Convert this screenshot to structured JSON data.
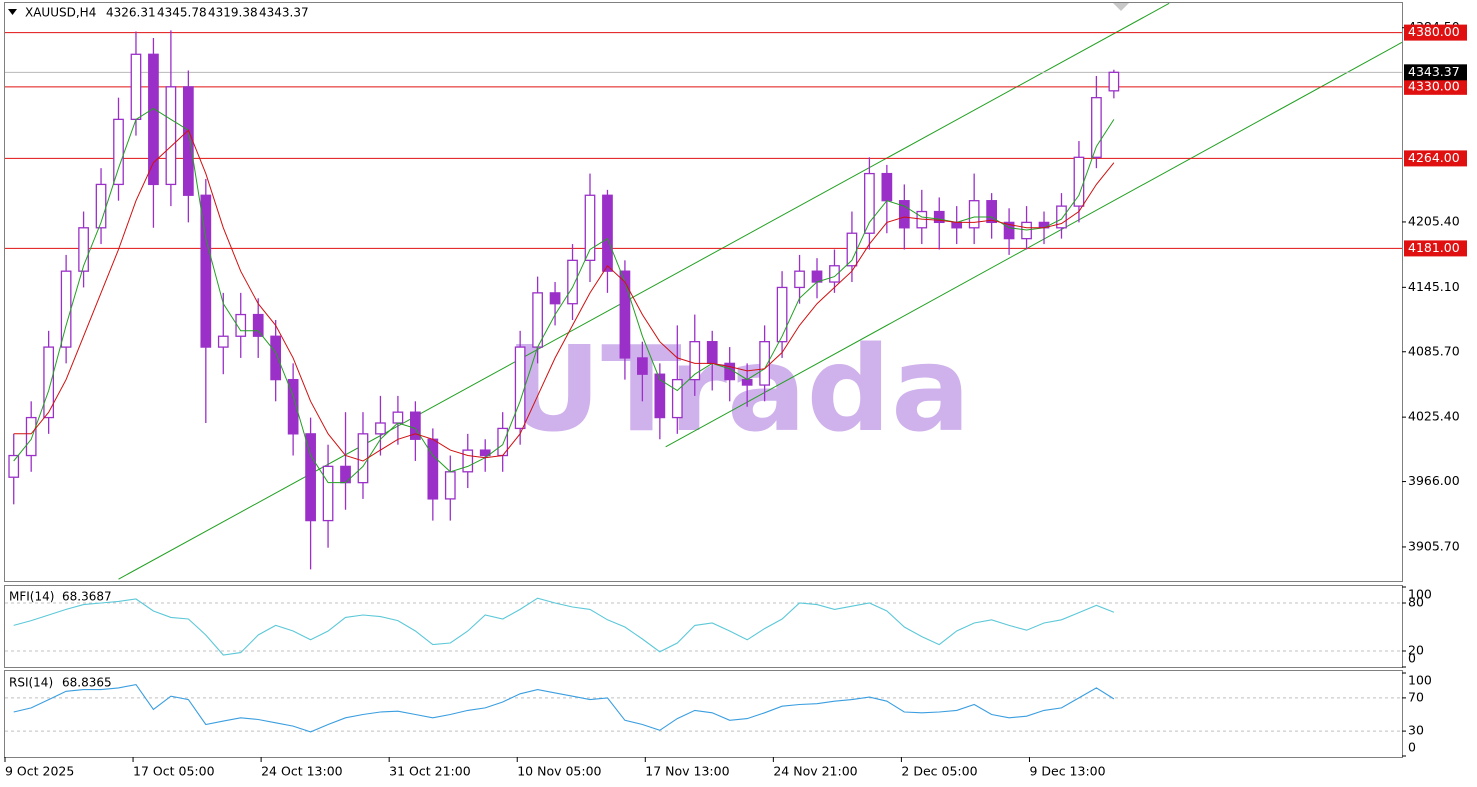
{
  "chart_data": [
    {
      "type": "candlestick",
      "title": "XAUUSD,H4",
      "quote": [
        4326.31,
        4345.78,
        4319.38,
        4343.37
      ],
      "watermark": "UTrada",
      "xlim": [
        0,
        480
      ],
      "ylim": [
        3874.3,
        4407.3
      ],
      "xticks": [
        {
          "value": 0,
          "label": "9 Oct 2025"
        },
        {
          "value": 44,
          "label": "17 Oct 05:00"
        },
        {
          "value": 88,
          "label": "24 Oct 13:00"
        },
        {
          "value": 132,
          "label": "31 Oct 21:00"
        },
        {
          "value": 176,
          "label": "10 Nov 05:00"
        },
        {
          "value": 220,
          "label": "17 Nov 13:00"
        },
        {
          "value": 264,
          "label": "24 Nov 21:00"
        },
        {
          "value": 308,
          "label": "2 Dec 05:00"
        },
        {
          "value": 352,
          "label": "9 Dec 13:00"
        }
      ],
      "yticks": [
        {
          "value": 4384.5,
          "label": "4384.50"
        },
        {
          "value": 4205.4,
          "label": "4205.40"
        },
        {
          "value": 4145.1,
          "label": "4145.10"
        },
        {
          "value": 4085.7,
          "label": "4085.70"
        },
        {
          "value": 4025.4,
          "label": "4025.40"
        },
        {
          "value": 3966,
          "label": "3966.00"
        },
        {
          "value": 3905.7,
          "label": "3905.70"
        }
      ],
      "color": "#9b30c8",
      "x": [
        3,
        9,
        15,
        21,
        27,
        33,
        39,
        45,
        51,
        57,
        63,
        69,
        75,
        81,
        87,
        93,
        99,
        105,
        111,
        117,
        123,
        129,
        135,
        141,
        147,
        153,
        159,
        165,
        171,
        177,
        183,
        189,
        195,
        201,
        207,
        213,
        219,
        225,
        231,
        237,
        243,
        249,
        255,
        261,
        267,
        273,
        279,
        285,
        291,
        297,
        303,
        309,
        315,
        321,
        327,
        333,
        339,
        345,
        351,
        357,
        363,
        369,
        375,
        381
      ],
      "open": [
        3970,
        3990,
        4025,
        4090,
        4160,
        4200,
        4240,
        4300,
        4360,
        4240,
        4330,
        4230,
        4090,
        4100,
        4120,
        4100,
        4060,
        4010,
        3930,
        3980,
        3965,
        4010,
        4020,
        4030,
        4005,
        3950,
        3975,
        3995,
        3990,
        4015,
        4090,
        4140,
        4130,
        4170,
        4230,
        4160,
        4080,
        4065,
        4025,
        4060,
        4095,
        4075,
        4060,
        4055,
        4095,
        4145,
        4160,
        4150,
        4165,
        4195,
        4250,
        4225,
        4200,
        4215,
        4205,
        4200,
        4225,
        4205,
        4190,
        4205,
        4200,
        4220,
        4265,
        4326.31
      ],
      "high": [
        4010,
        4040,
        4105,
        4175,
        4215,
        4255,
        4320,
        4381,
        4375,
        4382,
        4345,
        4245,
        4140,
        4140,
        4135,
        4115,
        4075,
        4025,
        4000,
        4030,
        4030,
        4045,
        4045,
        4040,
        4015,
        3990,
        4010,
        4005,
        4030,
        4105,
        4155,
        4150,
        4185,
        4250,
        4235,
        4170,
        4095,
        4075,
        4110,
        4120,
        4105,
        4090,
        4075,
        4110,
        4160,
        4175,
        4172,
        4180,
        4215,
        4265,
        4258,
        4240,
        4235,
        4228,
        4220,
        4250,
        4232,
        4218,
        4220,
        4215,
        4232,
        4280,
        4340,
        4345.78
      ],
      "low": [
        3945,
        3975,
        4010,
        4075,
        4145,
        4185,
        4225,
        4285,
        4200,
        4220,
        4205,
        4020,
        4065,
        4080,
        4080,
        4040,
        3990,
        3885,
        3905,
        3940,
        3950,
        3990,
        4000,
        3985,
        3930,
        3930,
        3960,
        3975,
        3975,
        4000,
        4075,
        4110,
        4115,
        4150,
        4140,
        4060,
        4040,
        4005,
        4010,
        4045,
        4050,
        4040,
        4035,
        4040,
        4080,
        4130,
        4135,
        4140,
        4150,
        4180,
        4195,
        4180,
        4185,
        4180,
        4185,
        4185,
        4190,
        4175,
        4180,
        4185,
        4190,
        4205,
        4255,
        4319.38
      ],
      "close": [
        3990,
        4025,
        4090,
        4160,
        4200,
        4240,
        4300,
        4360,
        4240,
        4330,
        4230,
        4090,
        4100,
        4120,
        4100,
        4060,
        4010,
        3930,
        3980,
        3965,
        4010,
        4020,
        4030,
        4005,
        3950,
        3975,
        3995,
        3990,
        4015,
        4090,
        4140,
        4130,
        4170,
        4230,
        4160,
        4080,
        4065,
        4025,
        4060,
        4095,
        4075,
        4060,
        4055,
        4095,
        4145,
        4160,
        4150,
        4165,
        4195,
        4250,
        4225,
        4200,
        4215,
        4205,
        4200,
        4225,
        4205,
        4190,
        4205,
        4200,
        4220,
        4265,
        4320,
        4343.37
      ],
      "series": [
        {
          "color": "#22a022",
          "values": [
            3985,
            4005,
            4050,
            4110,
            4165,
            4205,
            4255,
            4300,
            4310,
            4300,
            4290,
            4190,
            4130,
            4105,
            4105,
            4085,
            4045,
            3990,
            3965,
            3965,
            3980,
            4005,
            4020,
            4015,
            3990,
            3975,
            3980,
            3988,
            4000,
            4040,
            4090,
            4120,
            4145,
            4180,
            4190,
            4150,
            4100,
            4060,
            4050,
            4065,
            4075,
            4070,
            4060,
            4070,
            4100,
            4135,
            4150,
            4155,
            4170,
            4205,
            4225,
            4220,
            4210,
            4208,
            4205,
            4210,
            4210,
            4200,
            4198,
            4200,
            4208,
            4230,
            4275,
            4300
          ]
        },
        {
          "color": "#d01010",
          "values": [
            4010,
            4010,
            4030,
            4060,
            4100,
            4140,
            4180,
            4225,
            4260,
            4275,
            4290,
            4250,
            4200,
            4160,
            4130,
            4110,
            4080,
            4040,
            4010,
            3990,
            3985,
            3995,
            4005,
            4010,
            4005,
            3995,
            3990,
            3988,
            3990,
            4010,
            4045,
            4080,
            4110,
            4140,
            4165,
            4150,
            4120,
            4095,
            4080,
            4075,
            4075,
            4072,
            4068,
            4070,
            4085,
            4110,
            4130,
            4145,
            4160,
            4185,
            4205,
            4210,
            4208,
            4207,
            4205,
            4205,
            4207,
            4203,
            4200,
            4200,
            4204,
            4215,
            4240,
            4260
          ]
        }
      ],
      "trendlines": [
        {
          "x": [
            39,
            400
          ],
          "y": [
            3876,
            4407
          ],
          "color": "#22a022"
        },
        {
          "x": [
            227,
            480
          ],
          "y": [
            3998,
            4371
          ],
          "color": "#22a022"
        }
      ],
      "levels": [
        {
          "value": 4380,
          "label": "4380.00"
        },
        {
          "value": 4330,
          "label": "4330.00"
        },
        {
          "value": 4264,
          "label": "4264.00"
        },
        {
          "value": 4181,
          "label": "4181.00"
        }
      ],
      "level_color": "#e01010",
      "current_price": 4343.37
    },
    {
      "type": "line",
      "title": "MFI(14)",
      "value": 68.3687,
      "xlim": [
        0,
        480
      ],
      "ylim": [
        0,
        100
      ],
      "yticks": [
        100,
        80,
        20,
        0
      ],
      "levels": [
        80,
        20
      ],
      "color": "#5cc8d8",
      "x": [
        3,
        9,
        15,
        21,
        27,
        33,
        39,
        45,
        51,
        57,
        63,
        69,
        75,
        81,
        87,
        93,
        99,
        105,
        111,
        117,
        123,
        129,
        135,
        141,
        147,
        153,
        159,
        165,
        171,
        177,
        183,
        189,
        195,
        201,
        207,
        213,
        219,
        225,
        231,
        237,
        243,
        249,
        255,
        261,
        267,
        273,
        279,
        285,
        291,
        297,
        303,
        309,
        315,
        321,
        327,
        333,
        339,
        345,
        351,
        357,
        363,
        369,
        375,
        381
      ],
      "values": [
        52,
        58,
        65,
        72,
        78,
        80,
        82,
        85,
        70,
        62,
        60,
        40,
        15,
        18,
        40,
        52,
        45,
        34,
        45,
        62,
        65,
        63,
        58,
        45,
        28,
        30,
        45,
        65,
        60,
        72,
        86,
        80,
        75,
        72,
        59,
        50,
        35,
        19,
        30,
        52,
        55,
        45,
        34,
        48,
        60,
        80,
        78,
        72,
        76,
        80,
        70,
        50,
        38,
        28,
        45,
        55,
        59,
        52,
        46,
        55,
        59,
        68,
        77,
        68.3687
      ]
    },
    {
      "type": "line",
      "title": "RSI(14)",
      "value": 68.8365,
      "xlim": [
        0,
        480
      ],
      "ylim": [
        0,
        100
      ],
      "yticks": [
        100,
        70,
        30,
        0
      ],
      "levels": [
        70,
        30
      ],
      "color": "#3a9ee0",
      "x": [
        3,
        9,
        15,
        21,
        27,
        33,
        39,
        45,
        51,
        57,
        63,
        69,
        75,
        81,
        87,
        93,
        99,
        105,
        111,
        117,
        123,
        129,
        135,
        141,
        147,
        153,
        159,
        165,
        171,
        177,
        183,
        189,
        195,
        201,
        207,
        213,
        219,
        225,
        231,
        237,
        243,
        249,
        255,
        261,
        267,
        273,
        279,
        285,
        291,
        297,
        303,
        309,
        315,
        321,
        327,
        333,
        339,
        345,
        351,
        357,
        363,
        369,
        375,
        381
      ],
      "values": [
        53,
        58,
        68,
        78,
        80,
        80,
        82,
        86,
        56,
        72,
        68,
        38,
        42,
        46,
        44,
        40,
        36,
        29,
        38,
        46,
        50,
        53,
        54,
        50,
        46,
        50,
        55,
        58,
        65,
        75,
        80,
        76,
        72,
        68,
        70,
        43,
        38,
        31,
        45,
        55,
        52,
        43,
        45,
        52,
        60,
        62,
        63,
        66,
        68,
        71,
        66,
        53,
        52,
        53,
        55,
        62,
        50,
        46,
        48,
        55,
        58,
        70,
        82,
        68.8365
      ]
    }
  ]
}
